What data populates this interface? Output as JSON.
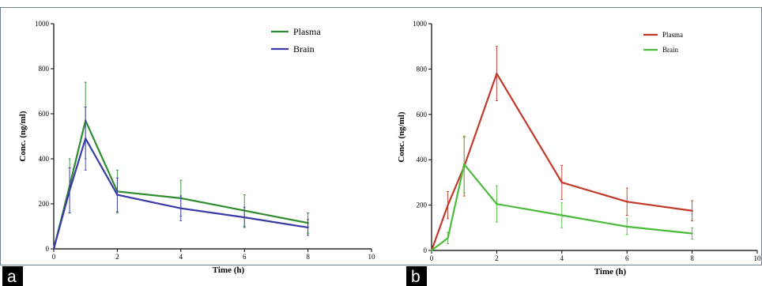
{
  "figure": {
    "panels": [
      {
        "label": "a"
      },
      {
        "label": "b"
      }
    ]
  },
  "chart_data": [
    {
      "type": "line",
      "panel_label": "a",
      "xlabel": "Time (h)",
      "ylabel": "Conc. (ng/ml)",
      "xlim": [
        0,
        10
      ],
      "ylim": [
        0,
        1000
      ],
      "xticks": [
        0,
        2,
        4,
        6,
        8,
        10
      ],
      "yticks": [
        0,
        200,
        400,
        600,
        800,
        1000
      ],
      "grid": false,
      "legend_position": "top-right",
      "series": [
        {
          "name": "Plasma",
          "color": "#2e8b2e",
          "x": [
            0,
            0.5,
            1,
            2,
            4,
            6,
            8
          ],
          "y": [
            0,
            280,
            570,
            255,
            225,
            170,
            115
          ],
          "err": [
            0,
            120,
            170,
            95,
            80,
            70,
            45
          ]
        },
        {
          "name": "Brain",
          "color": "#3a3aa8",
          "x": [
            0,
            0.5,
            1,
            2,
            4,
            6,
            8
          ],
          "y": [
            0,
            260,
            490,
            240,
            180,
            140,
            95
          ],
          "err": [
            0,
            100,
            140,
            75,
            55,
            45,
            35
          ]
        }
      ]
    },
    {
      "type": "line",
      "panel_label": "b",
      "xlabel": "Time (h)",
      "ylabel": "Conc. (ng/ml)",
      "xlim": [
        0,
        10
      ],
      "ylim": [
        0,
        1000
      ],
      "xticks": [
        0,
        2,
        4,
        6,
        8,
        10
      ],
      "yticks": [
        0,
        200,
        400,
        600,
        800,
        1000
      ],
      "grid": false,
      "legend_position": "top-right",
      "series": [
        {
          "name": "Plasma",
          "color": "#c0392b",
          "x": [
            0,
            0.5,
            1,
            2,
            4,
            6,
            8
          ],
          "y": [
            0,
            200,
            370,
            780,
            300,
            215,
            175
          ],
          "err": [
            0,
            60,
            130,
            120,
            75,
            60,
            45
          ]
        },
        {
          "name": "Brain",
          "color": "#4cbb3c",
          "x": [
            0,
            0.5,
            1,
            2,
            4,
            6,
            8
          ],
          "y": [
            0,
            55,
            380,
            205,
            155,
            105,
            75
          ],
          "err": [
            0,
            25,
            125,
            80,
            55,
            35,
            25
          ]
        }
      ]
    }
  ]
}
